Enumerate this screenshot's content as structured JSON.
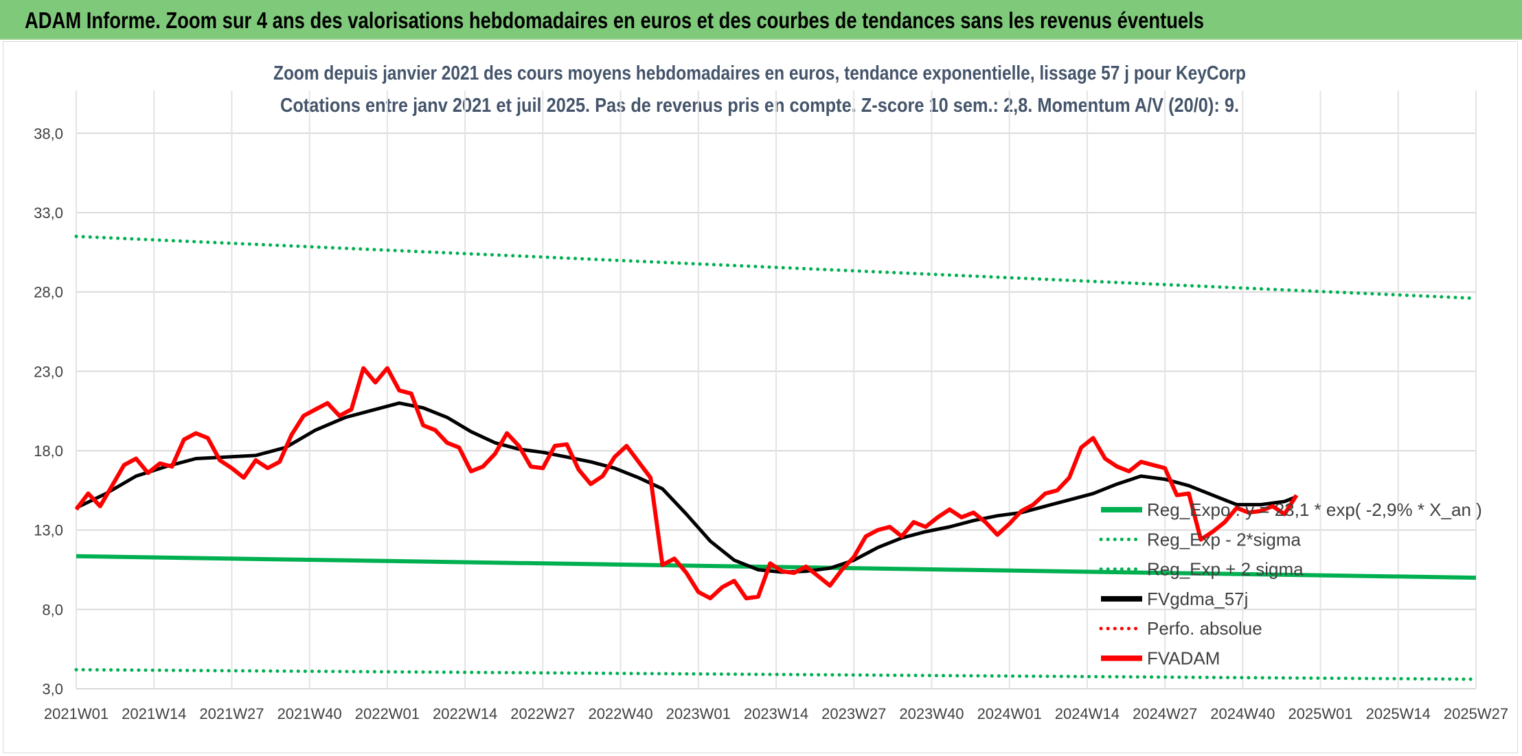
{
  "banner": {
    "title": "ADAM Informe. Zoom sur 4 ans des valorisations hebdomadaires en euros et des courbes de tendances sans les revenus éventuels",
    "color": "#7fc97a"
  },
  "chart_data": {
    "type": "line",
    "title_line1": "Zoom depuis janvier 2021 des cours moyens hebdomadaires en euros, tendance exponentielle, lissage 57 j pour KeyCorp",
    "title_line2": "Cotations entre janv 2021 et juil 2025. Pas de revenus pris en compte. Z-score 10 sem.: 2,8. Momentum A/V (20/0): 9.",
    "x_tick_labels": [
      "2021W01",
      "2021W14",
      "2021W27",
      "2021W40",
      "2022W01",
      "2022W14",
      "2022W27",
      "2022W40",
      "2023W01",
      "2023W14",
      "2023W27",
      "2023W40",
      "2024W01",
      "2024W14",
      "2024W27",
      "2024W40",
      "2025W01",
      "2025W14",
      "2025W27"
    ],
    "x_range_weeks": [
      0,
      234
    ],
    "y_ticks": [
      "3,0",
      "8,0",
      "13,0",
      "18,0",
      "23,0",
      "28,0",
      "33,0",
      "38,0"
    ],
    "ylim": [
      3,
      40
    ],
    "grid": true,
    "legend_position": "right-bottom",
    "series": [
      {
        "name": "Reg_Expo : y = 23,1 * exp( -2,9% * X_an )",
        "style": "solid",
        "color": "#00b050",
        "points": [
          [
            0,
            11.35
          ],
          [
            234,
            10.0
          ]
        ]
      },
      {
        "name": "Reg_Exp - 2*sigma",
        "style": "dotted",
        "color": "#00b050",
        "points": [
          [
            0,
            4.2
          ],
          [
            234,
            3.6
          ]
        ]
      },
      {
        "name": "Reg_Exp + 2 sigma",
        "style": "dotted",
        "color": "#00b050",
        "points": [
          [
            0,
            31.5
          ],
          [
            234,
            27.6
          ]
        ]
      },
      {
        "name": "FVgdma_57j",
        "style": "solid",
        "color": "#000000",
        "points": [
          [
            0,
            14.4
          ],
          [
            5,
            15.3
          ],
          [
            10,
            16.4
          ],
          [
            15,
            17.0
          ],
          [
            20,
            17.5
          ],
          [
            25,
            17.6
          ],
          [
            30,
            17.7
          ],
          [
            35,
            18.2
          ],
          [
            40,
            19.3
          ],
          [
            45,
            20.1
          ],
          [
            50,
            20.6
          ],
          [
            54,
            21.0
          ],
          [
            58,
            20.7
          ],
          [
            62,
            20.1
          ],
          [
            66,
            19.2
          ],
          [
            70,
            18.5
          ],
          [
            74,
            18.1
          ],
          [
            78,
            17.9
          ],
          [
            82,
            17.6
          ],
          [
            86,
            17.3
          ],
          [
            90,
            16.9
          ],
          [
            94,
            16.3
          ],
          [
            98,
            15.6
          ],
          [
            102,
            14.0
          ],
          [
            106,
            12.3
          ],
          [
            110,
            11.1
          ],
          [
            114,
            10.5
          ],
          [
            118,
            10.35
          ],
          [
            122,
            10.4
          ],
          [
            126,
            10.6
          ],
          [
            130,
            11.1
          ],
          [
            134,
            11.9
          ],
          [
            138,
            12.5
          ],
          [
            142,
            12.9
          ],
          [
            146,
            13.2
          ],
          [
            150,
            13.6
          ],
          [
            154,
            13.9
          ],
          [
            158,
            14.1
          ],
          [
            162,
            14.5
          ],
          [
            166,
            14.9
          ],
          [
            170,
            15.3
          ],
          [
            174,
            15.9
          ],
          [
            178,
            16.4
          ],
          [
            182,
            16.2
          ],
          [
            186,
            15.8
          ],
          [
            190,
            15.2
          ],
          [
            194,
            14.6
          ],
          [
            198,
            14.6
          ],
          [
            202,
            14.8
          ],
          [
            204,
            15.1
          ]
        ]
      },
      {
        "name": "Perfo. absolue",
        "style": "dotted",
        "color": "#ff0000",
        "points": []
      },
      {
        "name": "FVADAM",
        "style": "solid",
        "color": "#ff0000",
        "points": [
          [
            0,
            14.3
          ],
          [
            2,
            15.3
          ],
          [
            4,
            14.5
          ],
          [
            6,
            15.8
          ],
          [
            8,
            17.1
          ],
          [
            10,
            17.5
          ],
          [
            12,
            16.6
          ],
          [
            14,
            17.2
          ],
          [
            16,
            17.0
          ],
          [
            18,
            18.7
          ],
          [
            20,
            19.1
          ],
          [
            22,
            18.8
          ],
          [
            24,
            17.4
          ],
          [
            26,
            16.9
          ],
          [
            28,
            16.3
          ],
          [
            30,
            17.4
          ],
          [
            32,
            16.9
          ],
          [
            34,
            17.3
          ],
          [
            36,
            19.0
          ],
          [
            38,
            20.2
          ],
          [
            40,
            20.6
          ],
          [
            42,
            21.0
          ],
          [
            44,
            20.2
          ],
          [
            46,
            20.6
          ],
          [
            48,
            23.2
          ],
          [
            50,
            22.3
          ],
          [
            52,
            23.2
          ],
          [
            54,
            21.8
          ],
          [
            56,
            21.6
          ],
          [
            58,
            19.6
          ],
          [
            60,
            19.3
          ],
          [
            62,
            18.5
          ],
          [
            64,
            18.2
          ],
          [
            66,
            16.7
          ],
          [
            68,
            17.0
          ],
          [
            70,
            17.8
          ],
          [
            72,
            19.1
          ],
          [
            74,
            18.3
          ],
          [
            76,
            17.0
          ],
          [
            78,
            16.9
          ],
          [
            80,
            18.3
          ],
          [
            82,
            18.4
          ],
          [
            84,
            16.8
          ],
          [
            86,
            15.9
          ],
          [
            88,
            16.4
          ],
          [
            90,
            17.6
          ],
          [
            92,
            18.3
          ],
          [
            94,
            17.3
          ],
          [
            96,
            16.3
          ],
          [
            98,
            10.8
          ],
          [
            100,
            11.2
          ],
          [
            102,
            10.3
          ],
          [
            104,
            9.1
          ],
          [
            106,
            8.7
          ],
          [
            108,
            9.4
          ],
          [
            110,
            9.8
          ],
          [
            112,
            8.7
          ],
          [
            114,
            8.8
          ],
          [
            116,
            10.9
          ],
          [
            118,
            10.4
          ],
          [
            120,
            10.3
          ],
          [
            122,
            10.7
          ],
          [
            124,
            10.1
          ],
          [
            126,
            9.5
          ],
          [
            128,
            10.5
          ],
          [
            130,
            11.3
          ],
          [
            132,
            12.6
          ],
          [
            134,
            13.0
          ],
          [
            136,
            13.2
          ],
          [
            138,
            12.6
          ],
          [
            140,
            13.5
          ],
          [
            142,
            13.2
          ],
          [
            144,
            13.8
          ],
          [
            146,
            14.3
          ],
          [
            148,
            13.8
          ],
          [
            150,
            14.1
          ],
          [
            152,
            13.5
          ],
          [
            154,
            12.7
          ],
          [
            156,
            13.4
          ],
          [
            158,
            14.2
          ],
          [
            160,
            14.6
          ],
          [
            162,
            15.3
          ],
          [
            164,
            15.5
          ],
          [
            166,
            16.3
          ],
          [
            168,
            18.2
          ],
          [
            170,
            18.8
          ],
          [
            172,
            17.5
          ],
          [
            174,
            17.0
          ],
          [
            176,
            16.7
          ],
          [
            178,
            17.3
          ],
          [
            180,
            17.1
          ],
          [
            182,
            16.9
          ],
          [
            184,
            15.2
          ],
          [
            186,
            15.3
          ],
          [
            188,
            12.4
          ],
          [
            190,
            12.9
          ],
          [
            192,
            13.5
          ],
          [
            194,
            14.4
          ],
          [
            196,
            14.1
          ],
          [
            198,
            14.2
          ],
          [
            200,
            14.5
          ],
          [
            202,
            14.0
          ],
          [
            204,
            15.2
          ]
        ]
      }
    ]
  }
}
